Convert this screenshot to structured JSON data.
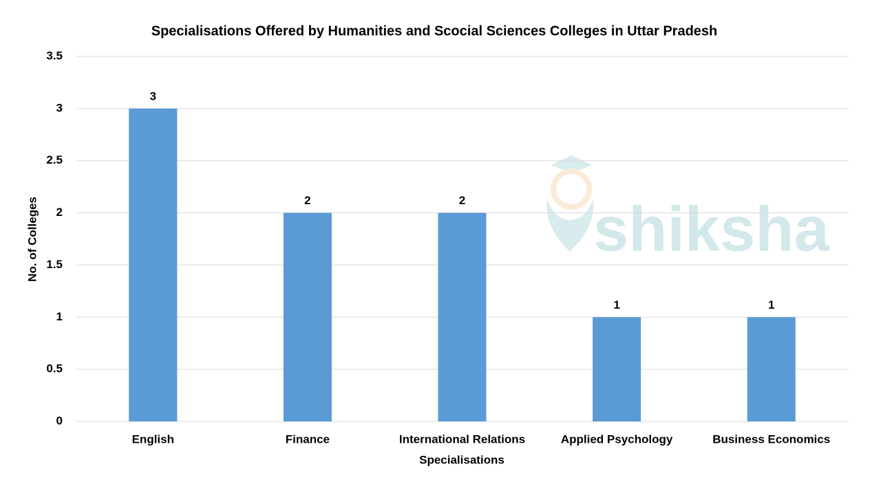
{
  "chart_data": {
    "type": "bar",
    "title": "Specialisations Offered by Humanities and Scocial Sciences Colleges in Uttar Pradesh",
    "x_label": "Specialisations",
    "y_label": "No. of Colleges",
    "categories": [
      "English",
      "Finance",
      "International Relations",
      "Applied Psychology",
      "Business Economics"
    ],
    "values": [
      3,
      2,
      2,
      1,
      1
    ],
    "color": "#5b9bd5",
    "ylim": [
      0,
      3.5
    ],
    "yticks": [
      0,
      0.5,
      1,
      1.5,
      2,
      2.5,
      3,
      3.5
    ],
    "grid": true,
    "watermark": "shiksha"
  }
}
